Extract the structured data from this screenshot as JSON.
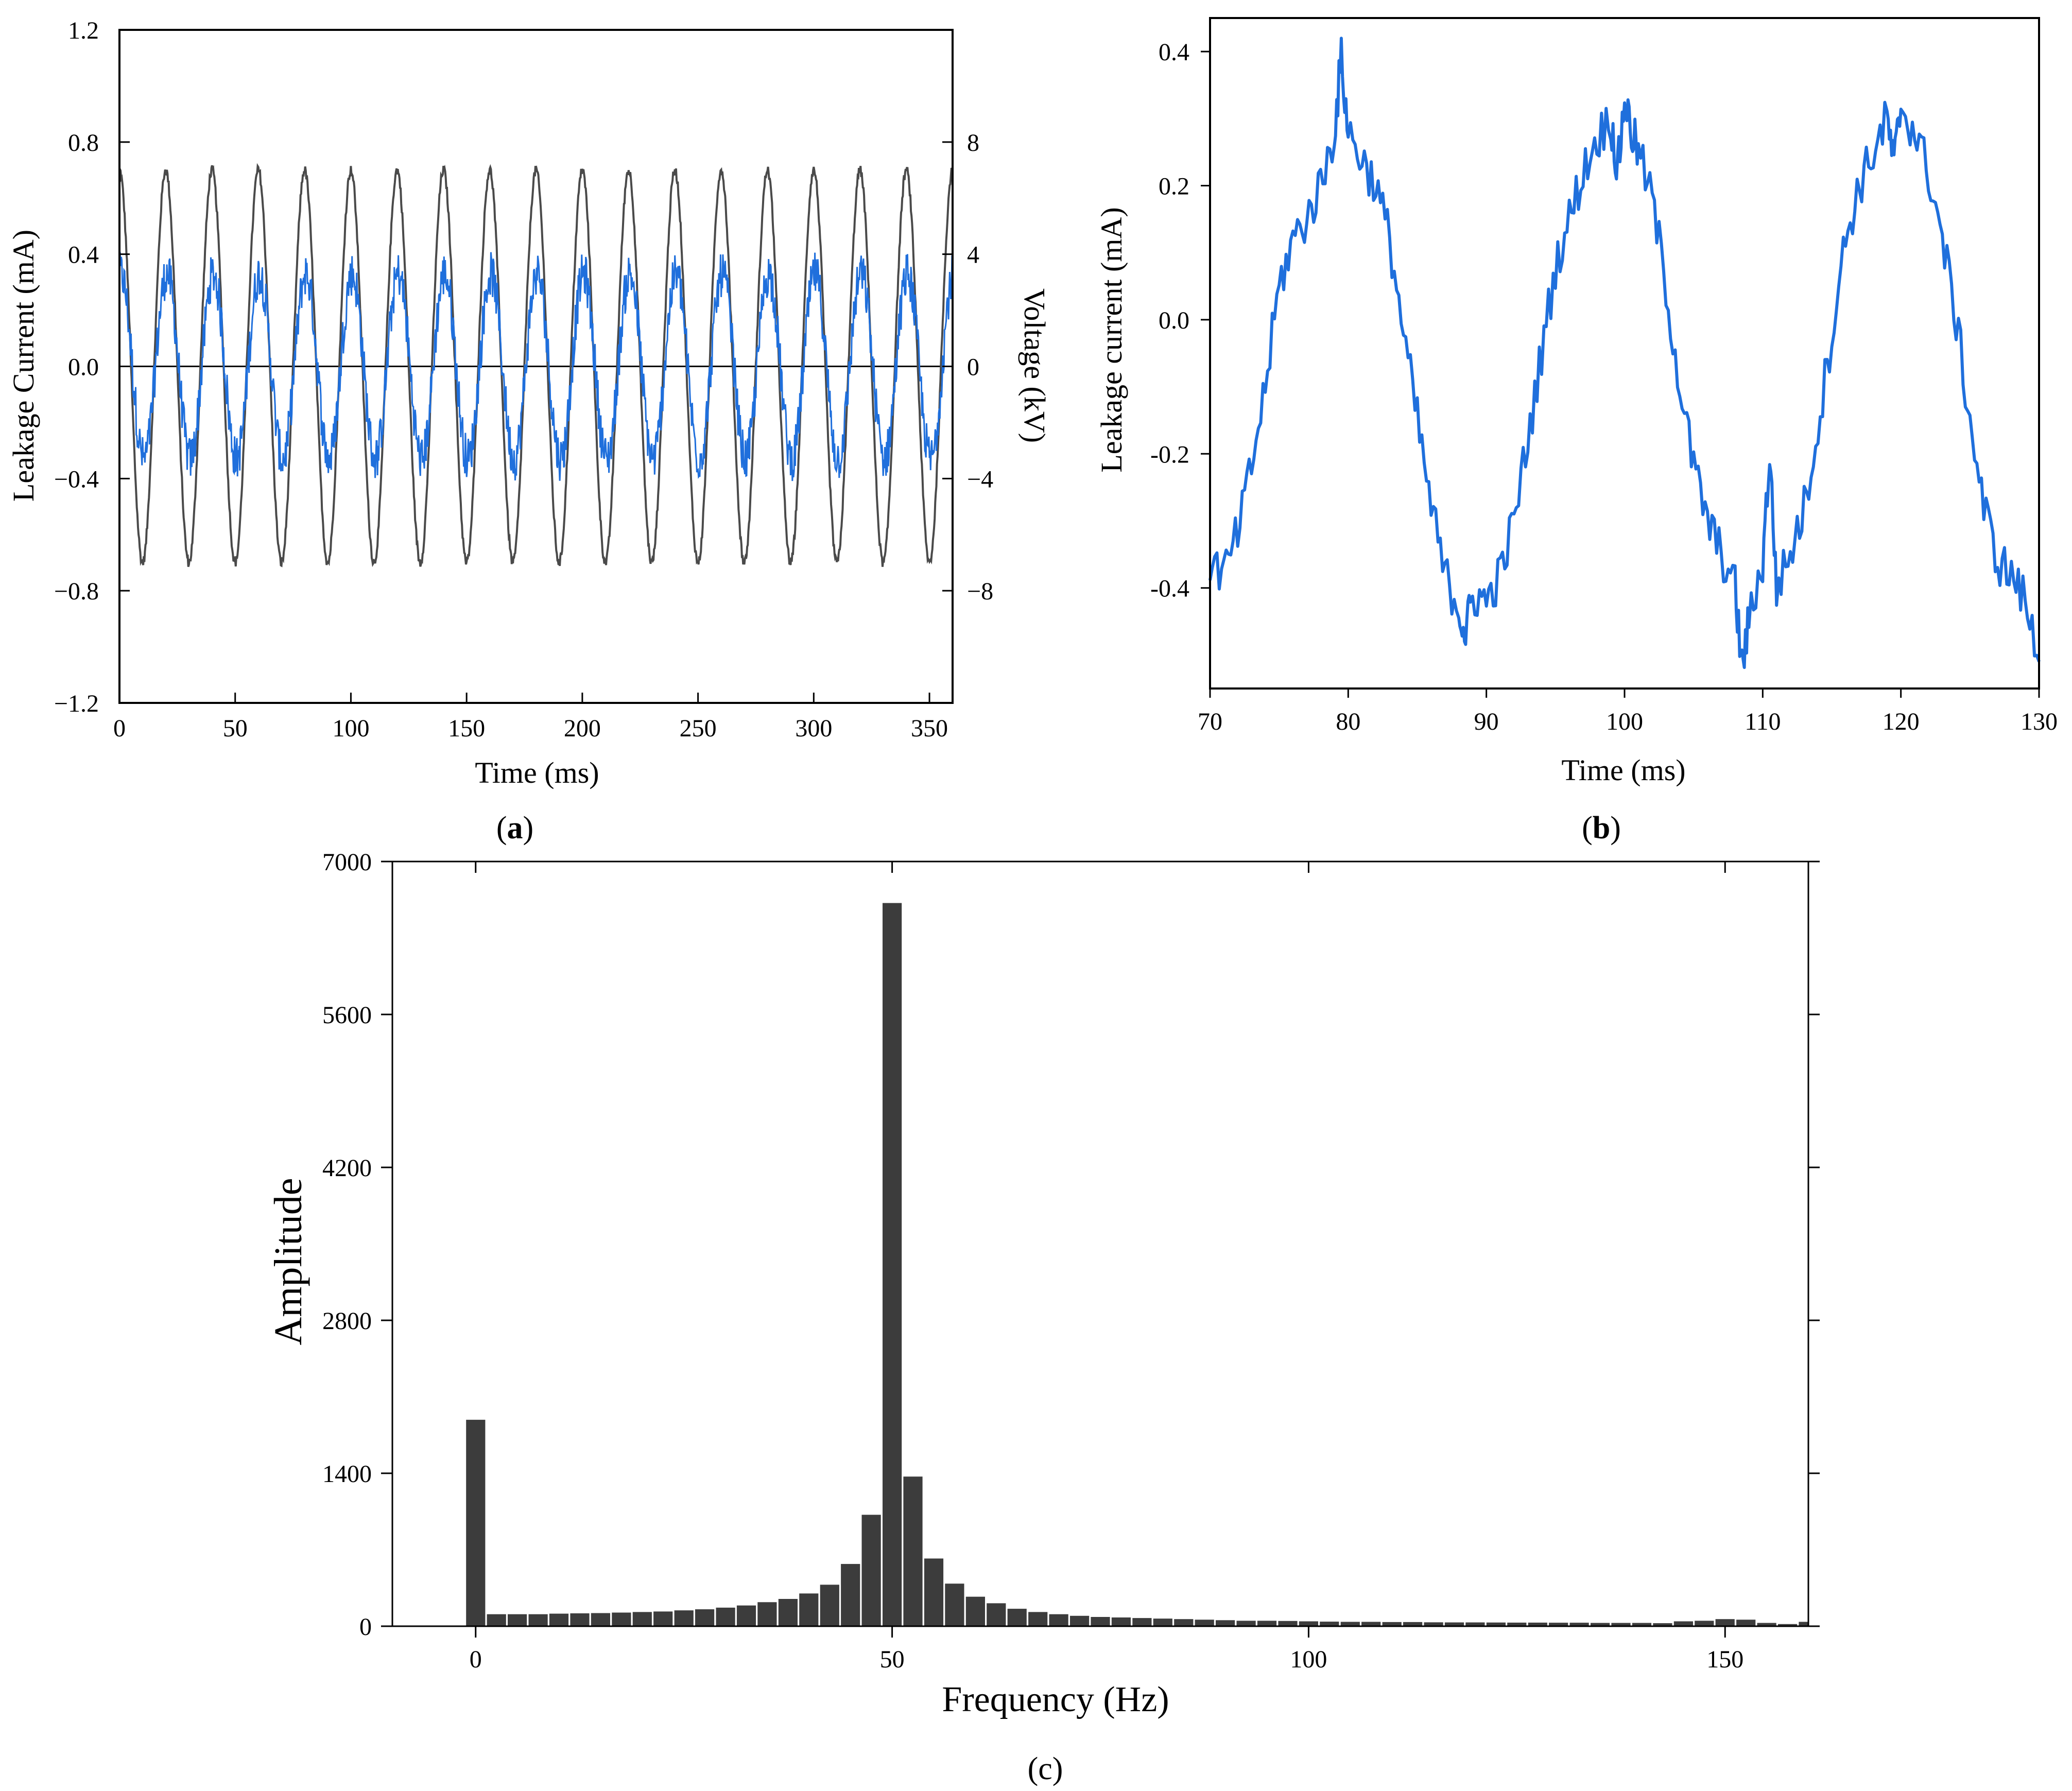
{
  "chart_data": [
    {
      "panel": "a",
      "type": "line",
      "caption_letter": "a",
      "xlabel": "Time (ms)",
      "ylabel": "Leakage Current (mA)",
      "y2label": "Voltage (kV)",
      "xlim": [
        0,
        360
      ],
      "ylim": [
        -1.2,
        1.2
      ],
      "y2lim": [
        -12,
        12
      ],
      "xticks": [
        0,
        50,
        100,
        150,
        200,
        250,
        300,
        350
      ],
      "yticks": [
        -1.2,
        -0.8,
        -0.4,
        0.0,
        0.4,
        0.8,
        1.2
      ],
      "ytick_labels": [
        "−1.2",
        "−0.8",
        "−0.4",
        "0.0",
        "0.4",
        "0.8",
        "1.2"
      ],
      "y2ticks": [
        -8,
        -4,
        0,
        4,
        8
      ],
      "y2tick_labels": [
        "−8",
        "−4",
        "0",
        "4",
        "8"
      ],
      "zero_line": true,
      "series": [
        {
          "name": "Voltage",
          "axis": "right",
          "color": "#4a4a4a",
          "frequency_hz": 50,
          "amplitude": 7.0,
          "phase_deg": 90
        },
        {
          "name": "Leakage current",
          "axis": "left",
          "color": "#1f6fdc",
          "frequency_hz": 50,
          "amplitude": 0.33,
          "phase_deg": 80,
          "noise": 0.08
        }
      ]
    },
    {
      "panel": "b",
      "type": "line",
      "caption_letter": "b",
      "xlabel": "Time (ms)",
      "ylabel": "Leakage current (mA)",
      "xlim": [
        70,
        130
      ],
      "ylim": [
        -0.55,
        0.45
      ],
      "xticks": [
        70,
        80,
        90,
        100,
        110,
        120,
        130
      ],
      "yticks": [
        -0.4,
        -0.2,
        0.0,
        0.2,
        0.4
      ],
      "ytick_labels": [
        "-0.4",
        "-0.2",
        "0.0",
        "0.2",
        "0.4"
      ],
      "series": [
        {
          "name": "Leakage current",
          "color": "#1f6fdc",
          "x": [
            70,
            71,
            72,
            73,
            74,
            75,
            76,
            77,
            78,
            79,
            79.5,
            80,
            81,
            82,
            83,
            84,
            85,
            86,
            87,
            88,
            88.5,
            89,
            90,
            91,
            92,
            93,
            94,
            95,
            96,
            97,
            98,
            99,
            99.5,
            100,
            100.5,
            101,
            102,
            103,
            104,
            105,
            106,
            107,
            108,
            108.5,
            109,
            110,
            110.5,
            111,
            112,
            113,
            114,
            115,
            116,
            117,
            118,
            119,
            119.5,
            120,
            121,
            122,
            123,
            124,
            125,
            126,
            127,
            128,
            129,
            130
          ],
          "y": [
            -0.36,
            -0.38,
            -0.32,
            -0.22,
            -0.1,
            0.05,
            0.12,
            0.15,
            0.2,
            0.28,
            0.39,
            0.28,
            0.24,
            0.2,
            0.12,
            -0.02,
            -0.15,
            -0.28,
            -0.38,
            -0.43,
            -0.47,
            -0.41,
            -0.42,
            -0.38,
            -0.3,
            -0.18,
            -0.05,
            0.08,
            0.15,
            0.22,
            0.27,
            0.3,
            0.22,
            0.33,
            0.28,
            0.25,
            0.18,
            0.05,
            -0.1,
            -0.22,
            -0.3,
            -0.35,
            -0.4,
            -0.52,
            -0.45,
            -0.36,
            -0.2,
            -0.4,
            -0.35,
            -0.28,
            -0.16,
            -0.02,
            0.12,
            0.2,
            0.25,
            0.3,
            0.23,
            0.32,
            0.28,
            0.22,
            0.12,
            0.0,
            -0.15,
            -0.28,
            -0.36,
            -0.38,
            -0.42,
            -0.51
          ]
        }
      ]
    },
    {
      "panel": "c",
      "type": "bar",
      "caption_letter": "c",
      "xlabel": "Frequency (Hz)",
      "ylabel": "Amplitude",
      "xlim": [
        -10,
        160
      ],
      "ylim": [
        0,
        7000
      ],
      "xticks": [
        0,
        50,
        100,
        150
      ],
      "yticks": [
        0,
        1400,
        2800,
        4200,
        5600,
        7000
      ],
      "bar_width_hz": 2.3,
      "color": "#3c3c3c",
      "x": [
        0,
        2.5,
        5,
        7.5,
        10,
        12.5,
        15,
        17.5,
        20,
        22.5,
        25,
        27.5,
        30,
        32.5,
        35,
        37.5,
        40,
        42.5,
        45,
        47.5,
        50,
        52.5,
        55,
        57.5,
        60,
        62.5,
        65,
        67.5,
        70,
        72.5,
        75,
        77.5,
        80,
        82.5,
        85,
        87.5,
        90,
        92.5,
        95,
        97.5,
        100,
        102.5,
        105,
        107.5,
        110,
        112.5,
        115,
        117.5,
        120,
        122.5,
        125,
        127.5,
        130,
        132.5,
        135,
        137.5,
        140,
        142.5,
        145,
        147.5,
        150,
        152.5,
        155,
        157.5,
        160
      ],
      "values": [
        1890,
        110,
        110,
        110,
        115,
        118,
        120,
        125,
        130,
        135,
        145,
        155,
        170,
        190,
        220,
        250,
        300,
        380,
        570,
        1020,
        6620,
        1370,
        620,
        390,
        270,
        210,
        160,
        130,
        110,
        95,
        85,
        80,
        75,
        70,
        65,
        60,
        55,
        50,
        50,
        48,
        45,
        42,
        40,
        40,
        38,
        38,
        36,
        35,
        35,
        34,
        33,
        33,
        32,
        32,
        30,
        30,
        30,
        28,
        45,
        50,
        65,
        60,
        30,
        20,
        40
      ]
    }
  ]
}
